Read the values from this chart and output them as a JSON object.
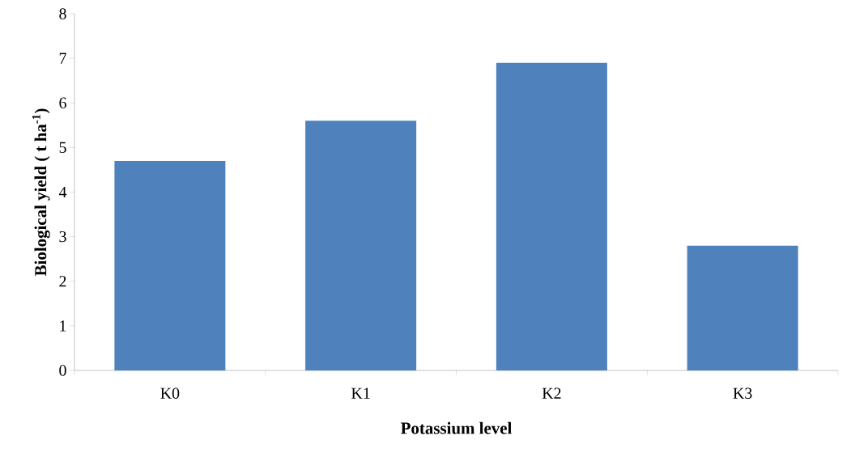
{
  "chart_data": {
    "type": "bar",
    "categories": [
      "K0",
      "K1",
      "K2",
      "K3"
    ],
    "values": [
      4.7,
      5.6,
      6.9,
      2.8
    ],
    "color": "#4f81bd",
    "xlabel": "Potassium level",
    "ylabel": "Biological yield ( t ha$^{-1}$)",
    "ylim": [
      0,
      8
    ],
    "yticks": [
      0,
      1,
      2,
      3,
      4,
      5,
      6,
      7,
      8
    ],
    "grid": false
  }
}
